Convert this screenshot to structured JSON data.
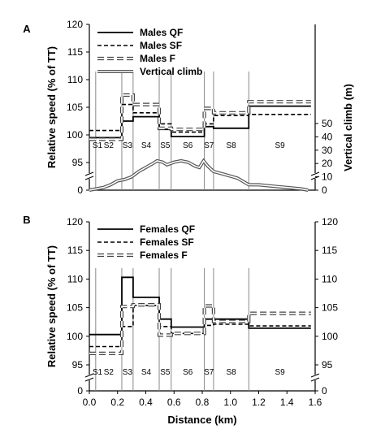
{
  "chart_data": [
    {
      "type": "line",
      "panel_label": "A",
      "xlabel": "",
      "ylabel": "Relative speed (% of TT)",
      "ylabel_right": "Vertical climb (m)",
      "xlim": [
        0,
        1.6
      ],
      "ylim": [
        95,
        120
      ],
      "y_ticks": [
        95,
        100,
        105,
        110,
        115,
        120
      ],
      "y_zero_tick": "0",
      "y2_ticks": [
        0,
        10,
        20,
        30,
        40,
        50
      ],
      "segment_boundaries": [
        0.0,
        0.045,
        0.23,
        0.31,
        0.495,
        0.58,
        0.815,
        0.88,
        1.13,
        1.57
      ],
      "segment_labels": [
        "S1",
        "S2",
        "S3",
        "S4",
        "S5",
        "S6",
        "S7",
        "S8",
        "S9"
      ],
      "series": [
        {
          "name": "Males QF",
          "style": "solid",
          "values": [
            99.5,
            99.5,
            102.5,
            103.3,
            101.0,
            99.7,
            101.5,
            101.2,
            105.2
          ]
        },
        {
          "name": "Males SF",
          "style": "dashed",
          "values": [
            100.8,
            100.8,
            105.5,
            104.0,
            102.0,
            100.5,
            102.0,
            103.5,
            103.7
          ]
        },
        {
          "name": "Males F",
          "style": "double-dashed",
          "values": [
            99.2,
            99.2,
            107.2,
            105.5,
            101.2,
            101.0,
            104.8,
            104.0,
            106.0
          ]
        },
        {
          "name": "Vertical climb",
          "style": "double-line",
          "axis": "right",
          "x": [
            0,
            0.05,
            0.1,
            0.15,
            0.2,
            0.25,
            0.3,
            0.35,
            0.4,
            0.45,
            0.48,
            0.52,
            0.55,
            0.6,
            0.65,
            0.7,
            0.75,
            0.78,
            0.81,
            0.84,
            0.88,
            0.95,
            1.05,
            1.13,
            1.2,
            1.3,
            1.4,
            1.5,
            1.55
          ],
          "y": [
            0,
            1,
            2,
            4,
            7,
            8,
            10,
            14,
            17,
            20,
            22,
            21,
            19,
            21,
            22,
            21,
            18,
            17,
            22,
            18,
            14,
            12,
            9,
            4,
            4,
            3,
            2,
            1,
            0
          ]
        }
      ]
    },
    {
      "type": "line",
      "panel_label": "B",
      "xlabel": "Distance (km)",
      "ylabel": "Relative speed (% of TT)",
      "xlim": [
        0,
        1.6
      ],
      "x_ticks": [
        "0.0",
        "0.2",
        "0.4",
        "0.6",
        "0.8",
        "1.0",
        "1.2",
        "1.4",
        "1.6"
      ],
      "ylim": [
        95,
        120
      ],
      "y_ticks": [
        95,
        100,
        105,
        110,
        115,
        120
      ],
      "y_zero_tick": "0",
      "y2_ticks": [
        95,
        100,
        105,
        110,
        115,
        120
      ],
      "segment_boundaries": [
        0.0,
        0.045,
        0.23,
        0.31,
        0.495,
        0.58,
        0.815,
        0.88,
        1.13,
        1.57
      ],
      "segment_labels": [
        "S1",
        "S2",
        "S3",
        "S4",
        "S5",
        "S6",
        "S7",
        "S8",
        "S9"
      ],
      "series": [
        {
          "name": "Females QF",
          "style": "solid",
          "values": [
            100.3,
            100.3,
            110.3,
            106.8,
            103.0,
            101.6,
            103.0,
            103.0,
            101.4
          ]
        },
        {
          "name": "Females SF",
          "style": "dashed",
          "values": [
            98.2,
            98.2,
            101.7,
            105.4,
            101.7,
            100.5,
            101.9,
            102.1,
            101.8
          ]
        },
        {
          "name": "Females F",
          "style": "double-dashed",
          "values": [
            97.0,
            97.0,
            105.2,
            105.5,
            100.2,
            100.5,
            105.3,
            102.6,
            104.0
          ]
        }
      ]
    }
  ]
}
